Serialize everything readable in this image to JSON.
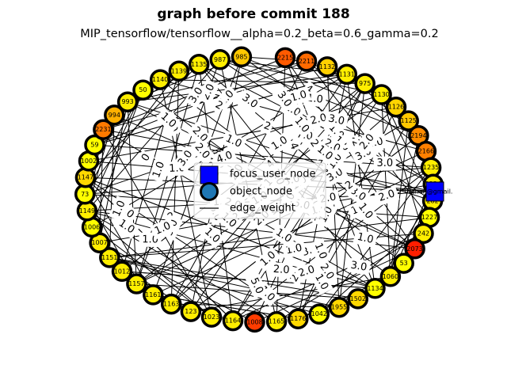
{
  "title": "graph before commit 188",
  "subtitle": "MIP_tensorflow/tensorflow__alpha=0.2_beta=0.6_gamma=0.2",
  "legend": {
    "focus_label": "focus_user_node",
    "object_label": "object_node",
    "edge_label": "edge_weight"
  },
  "colors": {
    "focus": "#0000ff",
    "object_marker": "#1f77b4",
    "yellow": "#ffff00",
    "gold": "#ffd700",
    "orange": "#ff8c00",
    "orange_red": "#ff4500",
    "red": "#ff0000"
  },
  "focus_node": {
    "label": "thenan@gmail."
  },
  "nodes": [
    {
      "label": "2215",
      "color": "#ff5a00"
    },
    {
      "label": "2211",
      "color": "#ff6a00"
    },
    {
      "label": "1132",
      "color": "#ffd000"
    },
    {
      "label": "1131",
      "color": "#ffee00"
    },
    {
      "label": "975",
      "color": "#ffee00"
    },
    {
      "label": "1130",
      "color": "#ffee00"
    },
    {
      "label": "1126",
      "color": "#ffd400"
    },
    {
      "label": "1125",
      "color": "#ffc800"
    },
    {
      "label": "2194",
      "color": "#ff8c00"
    },
    {
      "label": "2166",
      "color": "#ff8000"
    },
    {
      "label": "1235",
      "color": "#ffee00"
    },
    {
      "label": "1234",
      "color": "#ffee00"
    },
    {
      "label": "282",
      "color": "#ffee00"
    },
    {
      "label": "1227",
      "color": "#ffff00"
    },
    {
      "label": "242",
      "color": "#ffee00"
    },
    {
      "label": "2073",
      "color": "#ff1e00"
    },
    {
      "label": "53",
      "color": "#ffff00"
    },
    {
      "label": "1060",
      "color": "#ffee00"
    },
    {
      "label": "1134",
      "color": "#ffff00"
    },
    {
      "label": "1502",
      "color": "#ffd800"
    },
    {
      "label": "1955",
      "color": "#ffd800"
    },
    {
      "label": "1042",
      "color": "#ffff00"
    },
    {
      "label": "1176",
      "color": "#ffd800"
    },
    {
      "label": "1165",
      "color": "#ffee00"
    },
    {
      "label": "1008",
      "color": "#ff3c00"
    },
    {
      "label": "1164",
      "color": "#ffee00"
    },
    {
      "label": "1023",
      "color": "#ffee00"
    },
    {
      "label": "123",
      "color": "#ffee00"
    },
    {
      "label": "1163",
      "color": "#ffee00"
    },
    {
      "label": "1161",
      "color": "#ffee00"
    },
    {
      "label": "1157",
      "color": "#ffee00"
    },
    {
      "label": "1012",
      "color": "#ffee00"
    },
    {
      "label": "1151",
      "color": "#ffee00"
    },
    {
      "label": "1007",
      "color": "#ffee00"
    },
    {
      "label": "1006",
      "color": "#ffff00"
    },
    {
      "label": "1149",
      "color": "#ffee00"
    },
    {
      "label": "73",
      "color": "#ffff00"
    },
    {
      "label": "1147",
      "color": "#ffd800"
    },
    {
      "label": "1002",
      "color": "#ffff00"
    },
    {
      "label": "59",
      "color": "#ffff00"
    },
    {
      "label": "2231",
      "color": "#ff7a00"
    },
    {
      "label": "994",
      "color": "#ffb000"
    },
    {
      "label": "993",
      "color": "#ffee00"
    },
    {
      "label": "50",
      "color": "#ffff00"
    },
    {
      "label": "1140",
      "color": "#ffee00"
    },
    {
      "label": "1139",
      "color": "#ffee00"
    },
    {
      "label": "1135",
      "color": "#ffee00"
    },
    {
      "label": "987",
      "color": "#ffee00"
    },
    {
      "label": "985",
      "color": "#ffc800"
    }
  ],
  "edge_labels": [
    "1.0",
    "3.0",
    "3.0",
    "2",
    "4",
    "2.0",
    "1.0",
    "2.0",
    "3.0",
    "1.0",
    "2",
    "2.0",
    "1.0",
    "1.0",
    "2",
    "1.0",
    "2.0",
    "1.0",
    "1.0",
    "2.0",
    "7.0",
    "1.0",
    "1.0",
    "2",
    "3.0",
    "1.0",
    "1.0",
    "2.0",
    "1.0",
    "2.0",
    "1.0",
    "2.0",
    "2.0",
    "4.0",
    "1.0",
    "6.0",
    "1.0",
    "1.0",
    "2.0",
    "3.0",
    "1.0",
    "1.0",
    "1.0",
    "2",
    "1.0",
    "1.0",
    "2",
    "2.0",
    "1.0",
    "2.0",
    "5.0",
    "1.0",
    "4",
    "3.0",
    "2.0",
    "1.0",
    "5.0",
    "2",
    "3.0",
    "1.0",
    "1.0",
    "2",
    "1.0",
    "1.0",
    "3.0",
    "2.0",
    "3.0",
    "1.0",
    "2.0",
    "3.0",
    "1.0",
    "1.0",
    "2.0",
    "1.0",
    "1.0",
    "2",
    "2.0",
    "1.0",
    "3.0",
    "1.0",
    "0",
    "1.0",
    "2.0",
    "3.0",
    "1.0",
    "1.0",
    "1.0",
    "2.0",
    "4",
    "2.0",
    "3.0"
  ]
}
